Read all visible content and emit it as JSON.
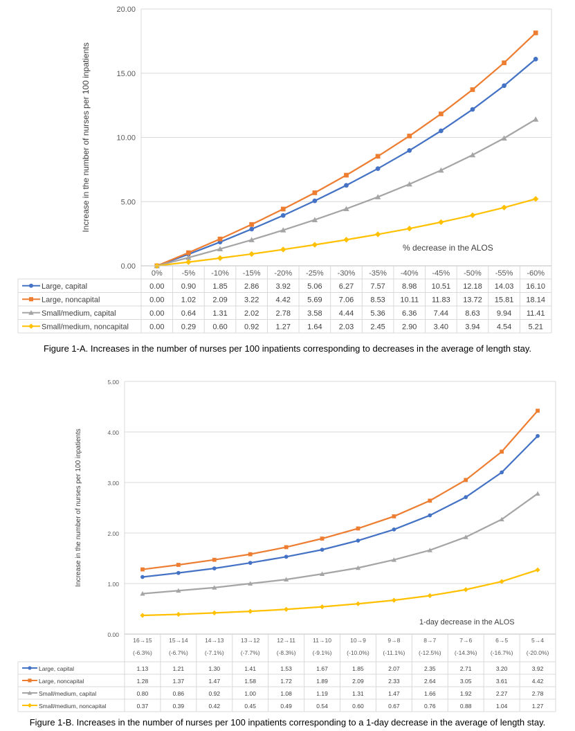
{
  "figure_a": {
    "caption": "Figure 1-A. Increases in the number of nurses per 100 inpatients corresponding to decreases in the average of length stay."
  },
  "figure_b": {
    "caption": "Figure 1-B. Increases in the number of nurses per 100 inpatients corresponding to a 1-day decrease in the average of length stay."
  },
  "colors": {
    "large_capital": "#4472C4",
    "large_noncapital": "#ED7D31",
    "small_capital": "#A5A5A5",
    "small_noncapital": "#FFC000"
  },
  "chart_data": [
    {
      "type": "line",
      "ylabel": "Increase in the number of nurses per 100 inpatients",
      "annotation": "% decrease in the ALOS",
      "ylim": [
        0,
        20
      ],
      "yticks": [
        "0.00",
        "5.00",
        "10.00",
        "15.00",
        "20.00"
      ],
      "grid": true,
      "legend": "data-table",
      "categories": [
        "0%",
        "-5%",
        "-10%",
        "-15%",
        "-20%",
        "-25%",
        "-30%",
        "-35%",
        "-40%",
        "-45%",
        "-50%",
        "-55%",
        "-60%"
      ],
      "series": [
        {
          "name": "Large, capital",
          "color": "#4472C4",
          "marker": "circle",
          "values": [
            0.0,
            0.9,
            1.85,
            2.86,
            3.92,
            5.06,
            6.27,
            7.57,
            8.98,
            10.51,
            12.18,
            14.03,
            16.1
          ],
          "labels": [
            "0.00",
            "0.90",
            "1.85",
            "2.86",
            "3.92",
            "5.06",
            "6.27",
            "7.57",
            "8.98",
            "10.51",
            "12.18",
            "14.03",
            "16.10"
          ]
        },
        {
          "name": "Large, noncapital",
          "color": "#ED7D31",
          "marker": "square",
          "values": [
            0.0,
            1.02,
            2.09,
            3.22,
            4.42,
            5.69,
            7.06,
            8.53,
            10.11,
            11.83,
            13.72,
            15.81,
            18.14
          ],
          "labels": [
            "0.00",
            "1.02",
            "2.09",
            "3.22",
            "4.42",
            "5.69",
            "7.06",
            "8.53",
            "10.11",
            "11.83",
            "13.72",
            "15.81",
            "18.14"
          ]
        },
        {
          "name": "Small/medium, capital",
          "color": "#A5A5A5",
          "marker": "triangle",
          "values": [
            0.0,
            0.64,
            1.31,
            2.02,
            2.78,
            3.58,
            4.44,
            5.36,
            6.36,
            7.44,
            8.63,
            9.94,
            11.41
          ],
          "labels": [
            "0.00",
            "0.64",
            "1.31",
            "2.02",
            "2.78",
            "3.58",
            "4.44",
            "5.36",
            "6.36",
            "7.44",
            "8.63",
            "9.94",
            "11.41"
          ]
        },
        {
          "name": "Small/medium, noncapital",
          "color": "#FFC000",
          "marker": "diamond",
          "values": [
            0.0,
            0.29,
            0.6,
            0.92,
            1.27,
            1.64,
            2.03,
            2.45,
            2.9,
            3.4,
            3.94,
            4.54,
            5.21
          ],
          "labels": [
            "0.00",
            "0.29",
            "0.60",
            "0.92",
            "1.27",
            "1.64",
            "2.03",
            "2.45",
            "2.90",
            "3.40",
            "3.94",
            "4.54",
            "5.21"
          ]
        }
      ]
    },
    {
      "type": "line",
      "ylabel": "Increase in the number of nurses per 100 inpatients",
      "annotation": "1-day decrease in the ALOS",
      "ylim": [
        0,
        5
      ],
      "yticks": [
        "0.00",
        "1.00",
        "2.00",
        "3.00",
        "4.00",
        "5.00"
      ],
      "grid": true,
      "legend": "data-table",
      "categories": [
        "16→15",
        "15→14",
        "14→13",
        "13→12",
        "12→11",
        "11→10",
        "10→9",
        "9→8",
        "8→7",
        "7→6",
        "6→5",
        "5→4"
      ],
      "subcategories": [
        "(-6.3%)",
        "(-6.7%)",
        "(-7.1%)",
        "(-7.7%)",
        "(-8.3%)",
        "(-9.1%)",
        "(-10.0%)",
        "(-11.1%)",
        "(-12.5%)",
        "(-14.3%)",
        "(-16.7%)",
        "(-20.0%)"
      ],
      "series": [
        {
          "name": "Large, capital",
          "color": "#4472C4",
          "marker": "circle",
          "values": [
            1.13,
            1.21,
            1.3,
            1.41,
            1.53,
            1.67,
            1.85,
            2.07,
            2.35,
            2.71,
            3.2,
            3.92
          ],
          "labels": [
            "1.13",
            "1.21",
            "1.30",
            "1.41",
            "1.53",
            "1.67",
            "1.85",
            "2.07",
            "2.35",
            "2.71",
            "3.20",
            "3.92"
          ]
        },
        {
          "name": "Large, noncapital",
          "color": "#ED7D31",
          "marker": "square",
          "values": [
            1.28,
            1.37,
            1.47,
            1.58,
            1.72,
            1.89,
            2.09,
            2.33,
            2.64,
            3.05,
            3.61,
            4.42
          ],
          "labels": [
            "1.28",
            "1.37",
            "1.47",
            "1.58",
            "1.72",
            "1.89",
            "2.09",
            "2.33",
            "2.64",
            "3.05",
            "3.61",
            "4.42"
          ]
        },
        {
          "name": "Small/medium, capital",
          "color": "#A5A5A5",
          "marker": "triangle",
          "values": [
            0.8,
            0.86,
            0.92,
            1.0,
            1.08,
            1.19,
            1.31,
            1.47,
            1.66,
            1.92,
            2.27,
            2.78
          ],
          "labels": [
            "0.80",
            "0.86",
            "0.92",
            "1.00",
            "1.08",
            "1.19",
            "1.31",
            "1.47",
            "1.66",
            "1.92",
            "2.27",
            "2.78"
          ]
        },
        {
          "name": "Small/medium, noncapital",
          "color": "#FFC000",
          "marker": "diamond",
          "values": [
            0.37,
            0.39,
            0.42,
            0.45,
            0.49,
            0.54,
            0.6,
            0.67,
            0.76,
            0.88,
            1.04,
            1.27
          ],
          "labels": [
            "0.37",
            "0.39",
            "0.42",
            "0.45",
            "0.49",
            "0.54",
            "0.60",
            "0.67",
            "0.76",
            "0.88",
            "1.04",
            "1.27"
          ]
        }
      ]
    }
  ]
}
